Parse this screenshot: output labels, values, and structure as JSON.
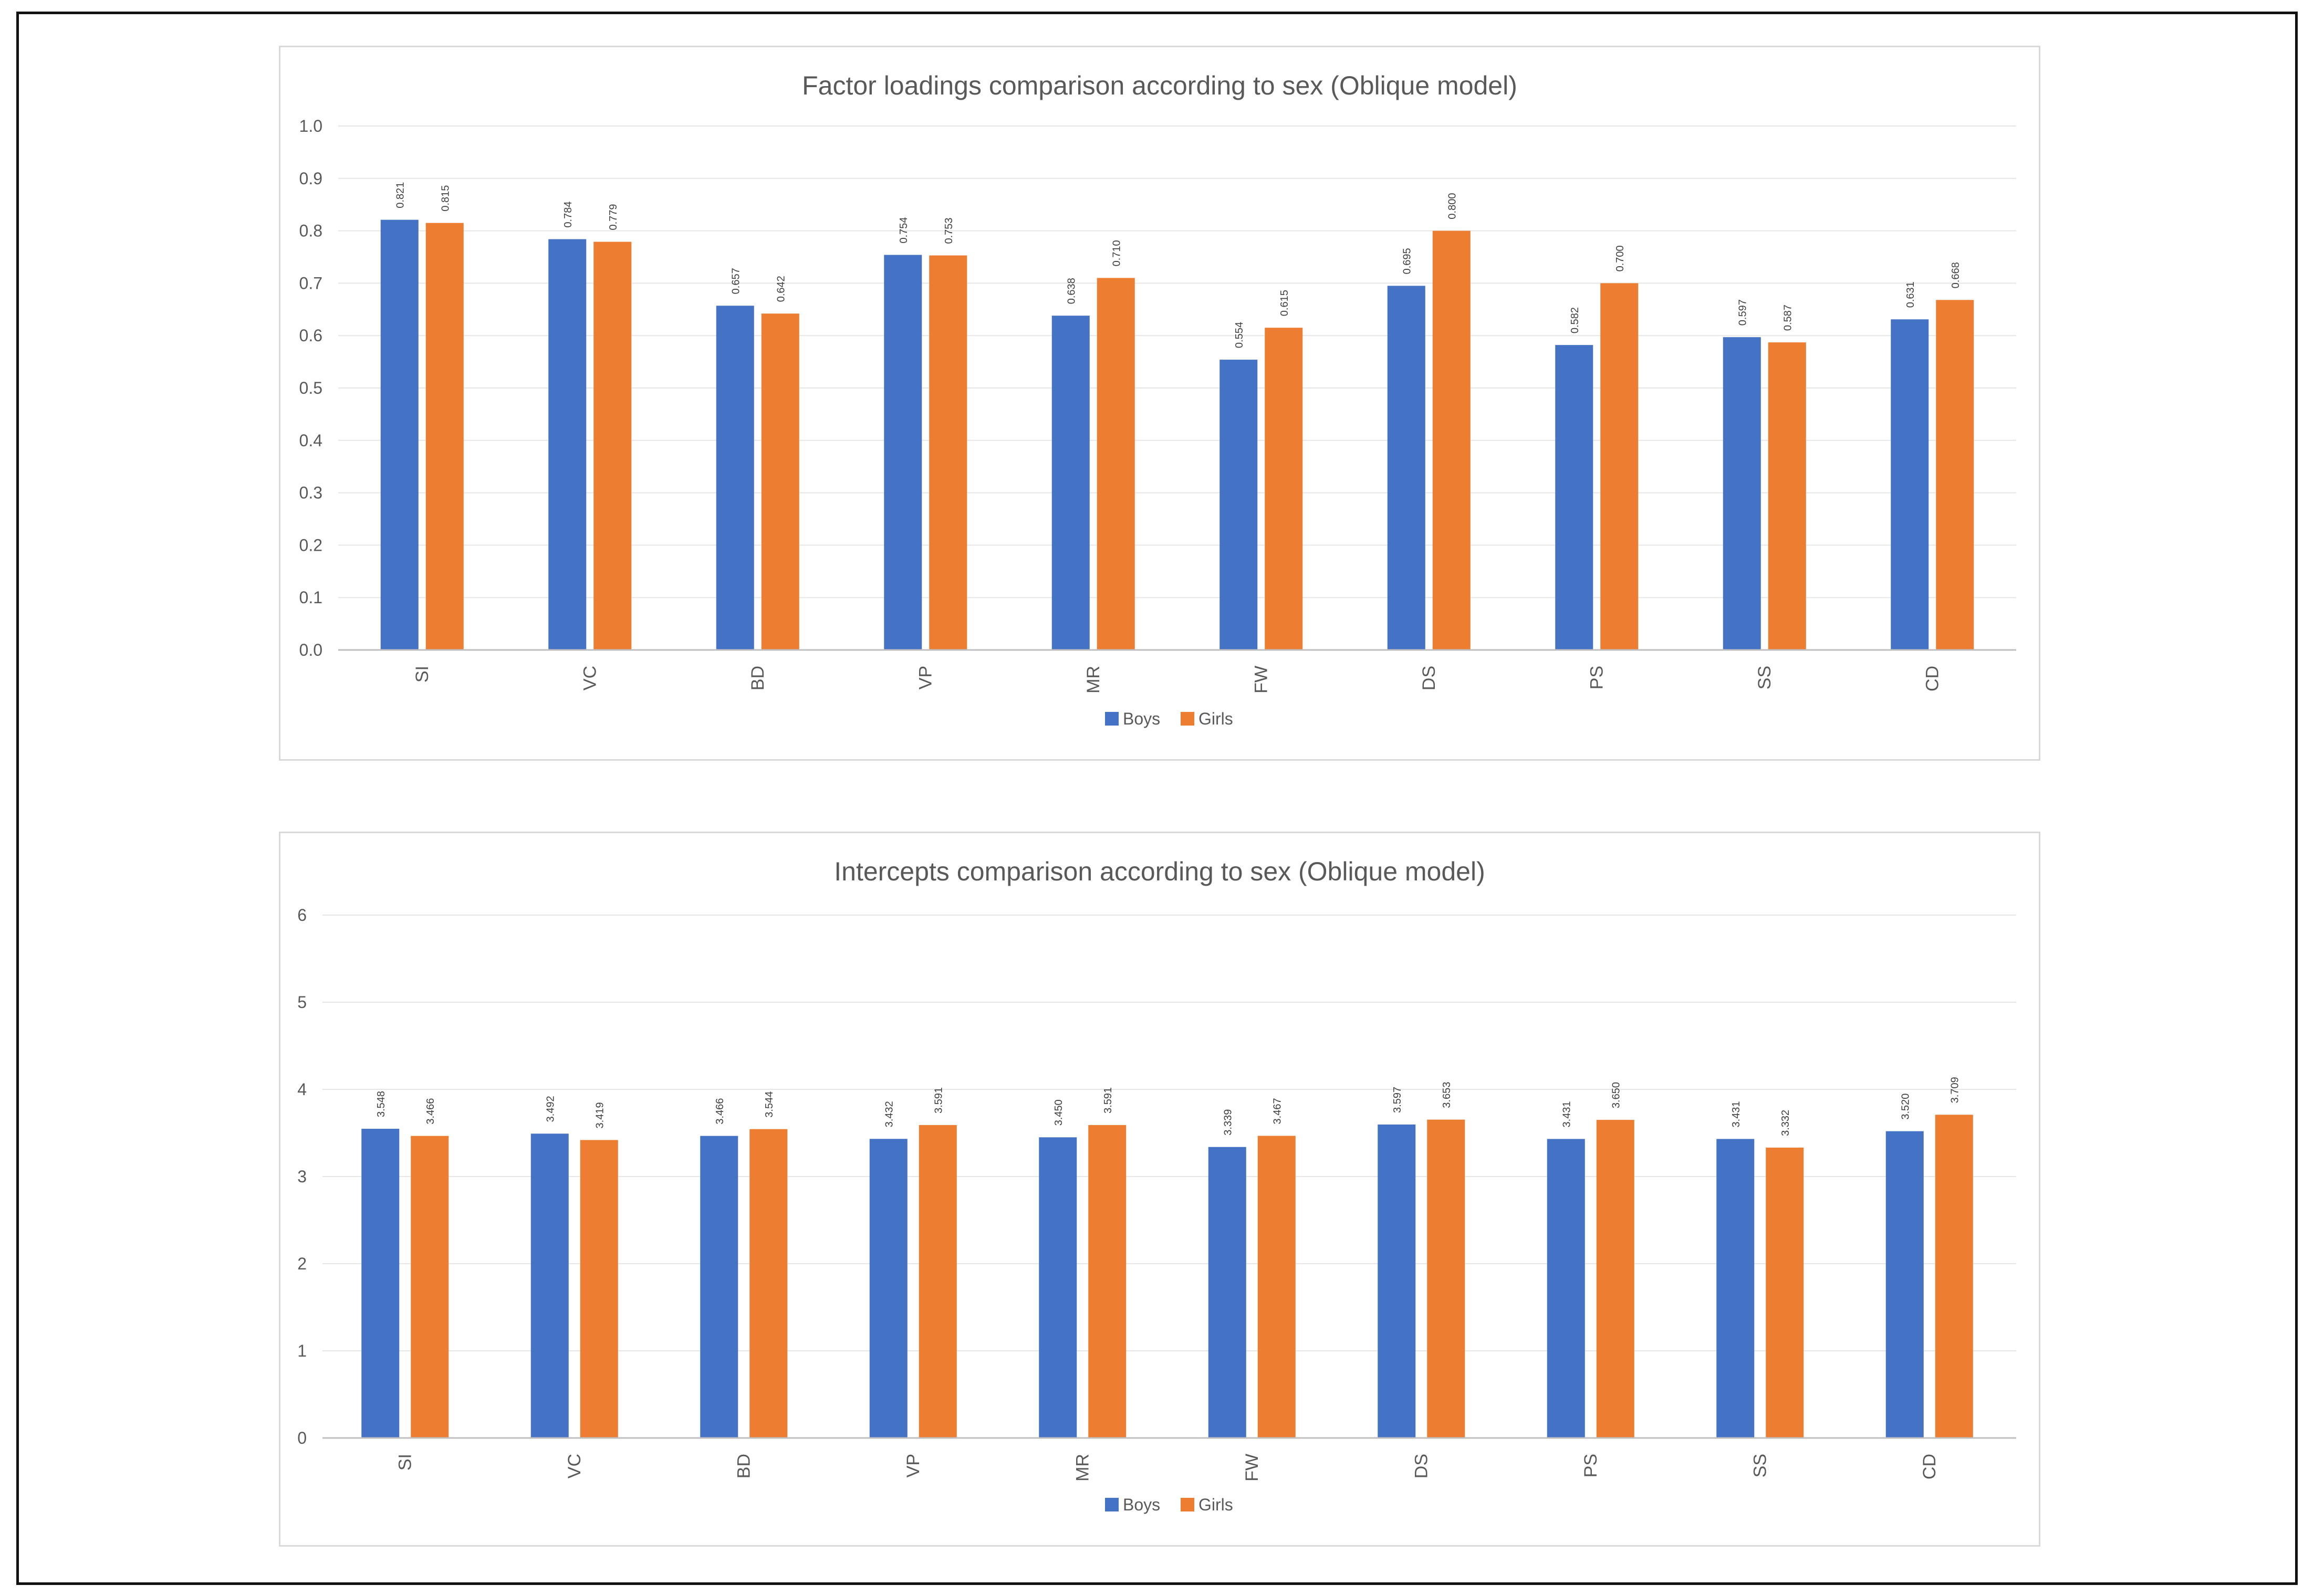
{
  "chart_data": [
    {
      "type": "bar",
      "title": "Factor loadings comparison according to sex (Oblique model)",
      "categories": [
        "SI",
        "VC",
        "BD",
        "VP",
        "MR",
        "FW",
        "DS",
        "PS",
        "SS",
        "CD"
      ],
      "series": [
        {
          "name": "Boys",
          "color": "#4472c4",
          "values": [
            0.821,
            0.784,
            0.657,
            0.754,
            0.638,
            0.554,
            0.695,
            0.582,
            0.597,
            0.631
          ],
          "labels": [
            "0.821",
            "0.784",
            "0.657",
            "0.754",
            "0.638",
            "0.554",
            "0.695",
            "0.582",
            "0.597",
            "0.631"
          ]
        },
        {
          "name": "Girls",
          "color": "#ed7d31",
          "values": [
            0.815,
            0.779,
            0.642,
            0.753,
            0.71,
            0.615,
            0.8,
            0.7,
            0.587,
            0.668
          ],
          "labels": [
            "0.815",
            "0.779",
            "0.642",
            "0.753",
            "0.710",
            "0.615",
            "0.800",
            "0.700",
            "0.587",
            "0.668"
          ]
        }
      ],
      "ylim": [
        0,
        1
      ],
      "yticks": [
        "0.0",
        "0.1",
        "0.2",
        "0.3",
        "0.4",
        "0.5",
        "0.6",
        "0.7",
        "0.8",
        "0.9",
        "1.0"
      ],
      "grid": true,
      "legend": "bottom-center"
    },
    {
      "type": "bar",
      "title": "Intercepts comparison according to sex (Oblique model)",
      "categories": [
        "SI",
        "VC",
        "BD",
        "VP",
        "MR",
        "FW",
        "DS",
        "PS",
        "SS",
        "CD"
      ],
      "series": [
        {
          "name": "Boys",
          "color": "#4472c4",
          "values": [
            3.548,
            3.492,
            3.466,
            3.432,
            3.45,
            3.339,
            3.597,
            3.431,
            3.431,
            3.52
          ],
          "labels": [
            "3.548",
            "3.492",
            "3.466",
            "3.432",
            "3.450",
            "3.339",
            "3.597",
            "3.431",
            "3.431",
            "3.520"
          ]
        },
        {
          "name": "Girls",
          "color": "#ed7d31",
          "values": [
            3.466,
            3.419,
            3.544,
            3.591,
            3.591,
            3.467,
            3.653,
            3.65,
            3.332,
            3.709
          ],
          "labels": [
            "3.466",
            "3.419",
            "3.544",
            "3.591",
            "3.591",
            "3.467",
            "3.653",
            "3.650",
            "3.332",
            "3.709"
          ]
        }
      ],
      "ylim": [
        0,
        6
      ],
      "yticks": [
        "0",
        "1",
        "2",
        "3",
        "4",
        "5",
        "6"
      ],
      "grid": true,
      "legend": "bottom-center"
    }
  ]
}
